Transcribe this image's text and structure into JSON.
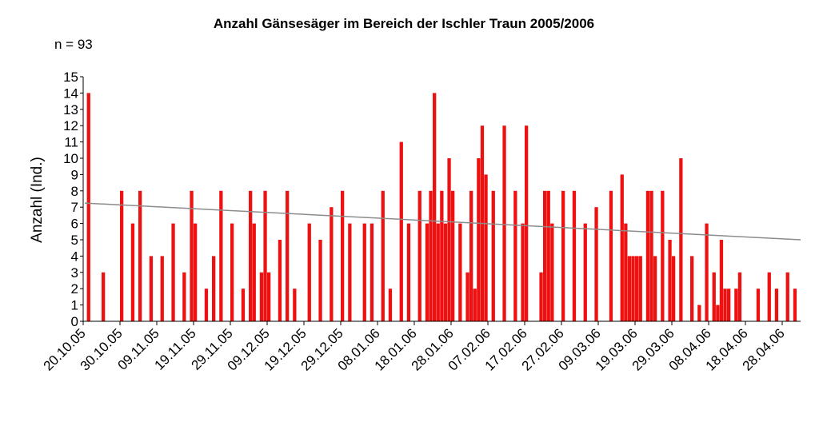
{
  "chart_data": {
    "type": "bar",
    "title": "Anzahl Gänsesäger im Bereich der Ischler Traun 2005/2006",
    "subtitle": "n = 93",
    "ylabel": "Anzahl (Ind.)",
    "xlabel": "",
    "x_unit": "days since 20.10.05",
    "ylim": [
      0,
      15
    ],
    "yticks": [
      0,
      1,
      2,
      3,
      4,
      5,
      6,
      7,
      8,
      9,
      10,
      11,
      12,
      13,
      14,
      15
    ],
    "xlim_days": [
      0,
      195
    ],
    "xtick_labels": [
      "20.10.05",
      "30.10.05",
      "09.11.05",
      "19.11.05",
      "29.11.05",
      "09.12.05",
      "19.12.05",
      "29.12.05",
      "08.01.06",
      "18.01.06",
      "28.01.06",
      "07.02.06",
      "17.02.06",
      "27.02.06",
      "09.03.06",
      "19.03.06",
      "29.03.06",
      "08.04.06",
      "18.04.06",
      "28.04.06"
    ],
    "xtick_step_days": 10,
    "bar_color": "#ee1111",
    "trend_color": "#8c8c8c",
    "trend_line": {
      "start_day": 0,
      "start_value": 7.25,
      "end_day": 195,
      "end_value": 5.0
    },
    "points": [
      [
        1,
        14
      ],
      [
        5,
        3
      ],
      [
        10,
        8
      ],
      [
        13,
        6
      ],
      [
        15,
        8
      ],
      [
        18,
        4
      ],
      [
        21,
        4
      ],
      [
        24,
        6
      ],
      [
        27,
        3
      ],
      [
        29,
        8
      ],
      [
        30,
        6
      ],
      [
        33,
        2
      ],
      [
        35,
        4
      ],
      [
        37,
        8
      ],
      [
        40,
        6
      ],
      [
        43,
        2
      ],
      [
        45,
        8
      ],
      [
        46,
        6
      ],
      [
        48,
        3
      ],
      [
        49,
        8
      ],
      [
        50,
        3
      ],
      [
        53,
        5
      ],
      [
        55,
        8
      ],
      [
        57,
        2
      ],
      [
        61,
        6
      ],
      [
        64,
        5
      ],
      [
        67,
        7
      ],
      [
        70,
        8
      ],
      [
        72,
        6
      ],
      [
        76,
        6
      ],
      [
        78,
        6
      ],
      [
        81,
        8
      ],
      [
        83,
        2
      ],
      [
        86,
        11
      ],
      [
        88,
        6
      ],
      [
        91,
        8
      ],
      [
        93,
        6
      ],
      [
        94,
        8
      ],
      [
        95,
        14
      ],
      [
        96,
        6
      ],
      [
        97,
        8
      ],
      [
        98,
        6
      ],
      [
        99,
        10
      ],
      [
        100,
        8
      ],
      [
        102,
        6
      ],
      [
        104,
        3
      ],
      [
        105,
        8
      ],
      [
        106,
        2
      ],
      [
        107,
        10
      ],
      [
        108,
        12
      ],
      [
        109,
        9
      ],
      [
        111,
        8
      ],
      [
        114,
        12
      ],
      [
        117,
        8
      ],
      [
        119,
        6
      ],
      [
        120,
        12
      ],
      [
        124,
        3
      ],
      [
        125,
        8
      ],
      [
        126,
        8
      ],
      [
        127,
        6
      ],
      [
        130,
        8
      ],
      [
        133,
        8
      ],
      [
        136,
        6
      ],
      [
        139,
        7
      ],
      [
        143,
        8
      ],
      [
        146,
        9
      ],
      [
        147,
        6
      ],
      [
        148,
        4
      ],
      [
        149,
        4
      ],
      [
        150,
        4
      ],
      [
        151,
        4
      ],
      [
        153,
        8
      ],
      [
        154,
        8
      ],
      [
        155,
        4
      ],
      [
        157,
        8
      ],
      [
        159,
        5
      ],
      [
        160,
        4
      ],
      [
        162,
        10
      ],
      [
        165,
        4
      ],
      [
        167,
        1
      ],
      [
        169,
        6
      ],
      [
        171,
        3
      ],
      [
        172,
        1
      ],
      [
        173,
        5
      ],
      [
        174,
        2
      ],
      [
        175,
        2
      ],
      [
        177,
        2
      ],
      [
        178,
        3
      ],
      [
        183,
        2
      ],
      [
        186,
        3
      ],
      [
        188,
        2
      ],
      [
        191,
        3
      ],
      [
        193,
        2
      ]
    ]
  }
}
